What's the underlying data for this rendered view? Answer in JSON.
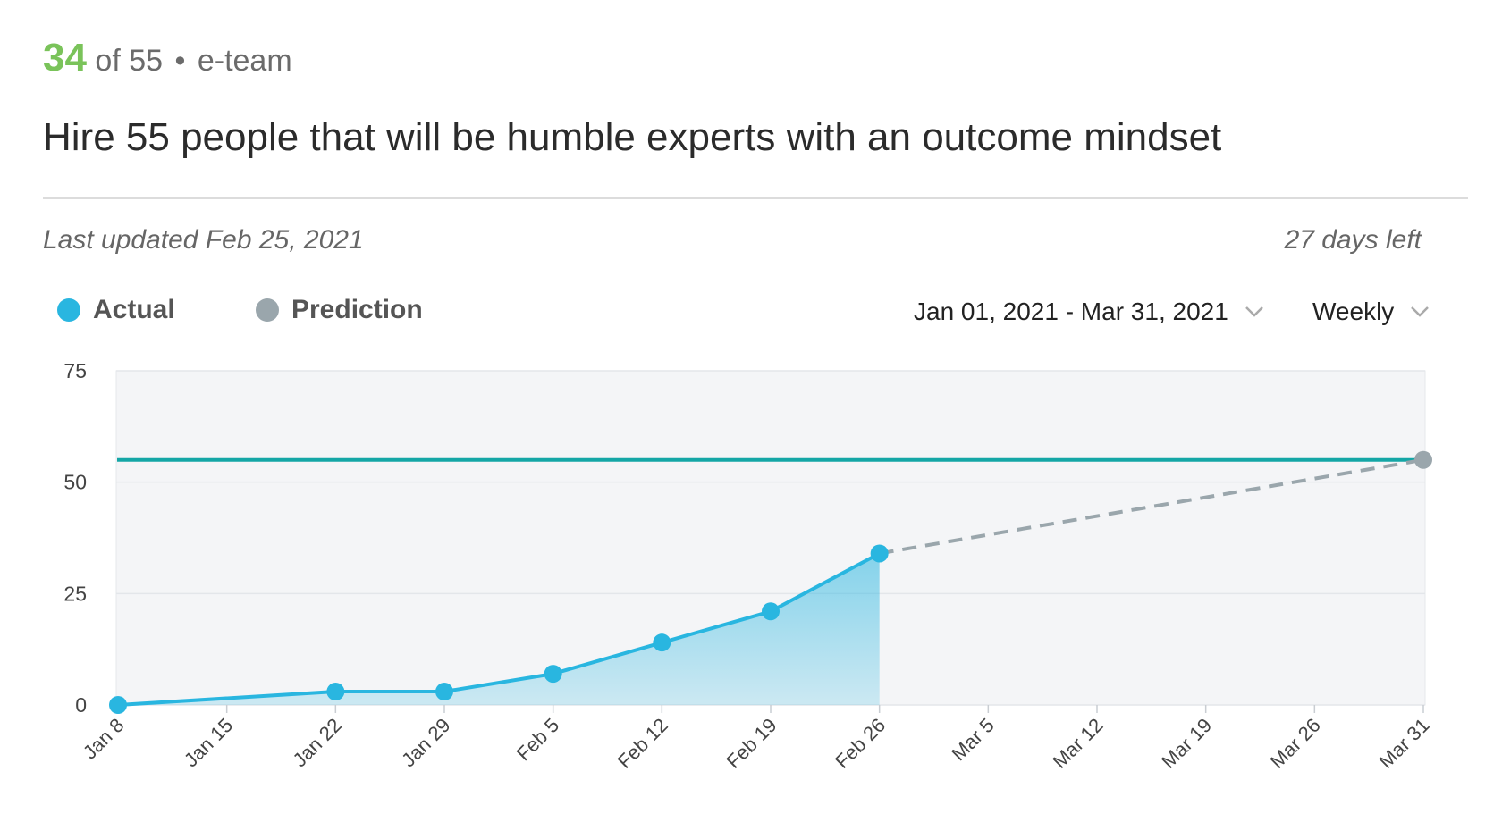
{
  "header": {
    "current": "34",
    "of_total": "of 55",
    "separator": "•",
    "team": "e-team",
    "title": "Hire 55 people that will be humble experts with an outcome mindset"
  },
  "meta": {
    "last_updated": "Last updated Feb 25, 2021",
    "days_left": "27 days left"
  },
  "legend": {
    "actual": "Actual",
    "prediction": "Prediction"
  },
  "controls": {
    "date_range": "Jan 01, 2021 - Mar 31, 2021",
    "interval": "Weekly"
  },
  "colors": {
    "actual": "#29b6e0",
    "prediction": "#9aa6ac",
    "target": "#14a6a6",
    "progress": "#7ac35a"
  },
  "chart_data": {
    "type": "line",
    "ylim": [
      0,
      75
    ],
    "yticks": [
      "0",
      "25",
      "50",
      "75"
    ],
    "x_ticks": [
      "Jan 8",
      "Jan 15",
      "Jan 22",
      "Jan 29",
      "Feb 5",
      "Feb 12",
      "Feb 19",
      "Feb 26",
      "Mar 5",
      "Mar 12",
      "Mar 19",
      "Mar 26",
      "Mar 31"
    ],
    "target_value": 55,
    "series": [
      {
        "name": "Actual",
        "x": [
          "Jan 8",
          "Jan 22",
          "Jan 29",
          "Feb 5",
          "Feb 12",
          "Feb 19",
          "Feb 26"
        ],
        "values": [
          0,
          3,
          3,
          7,
          14,
          21,
          34
        ]
      },
      {
        "name": "Prediction",
        "x": [
          "Feb 26",
          "Mar 31"
        ],
        "values": [
          34,
          55
        ]
      }
    ],
    "grid": true
  }
}
